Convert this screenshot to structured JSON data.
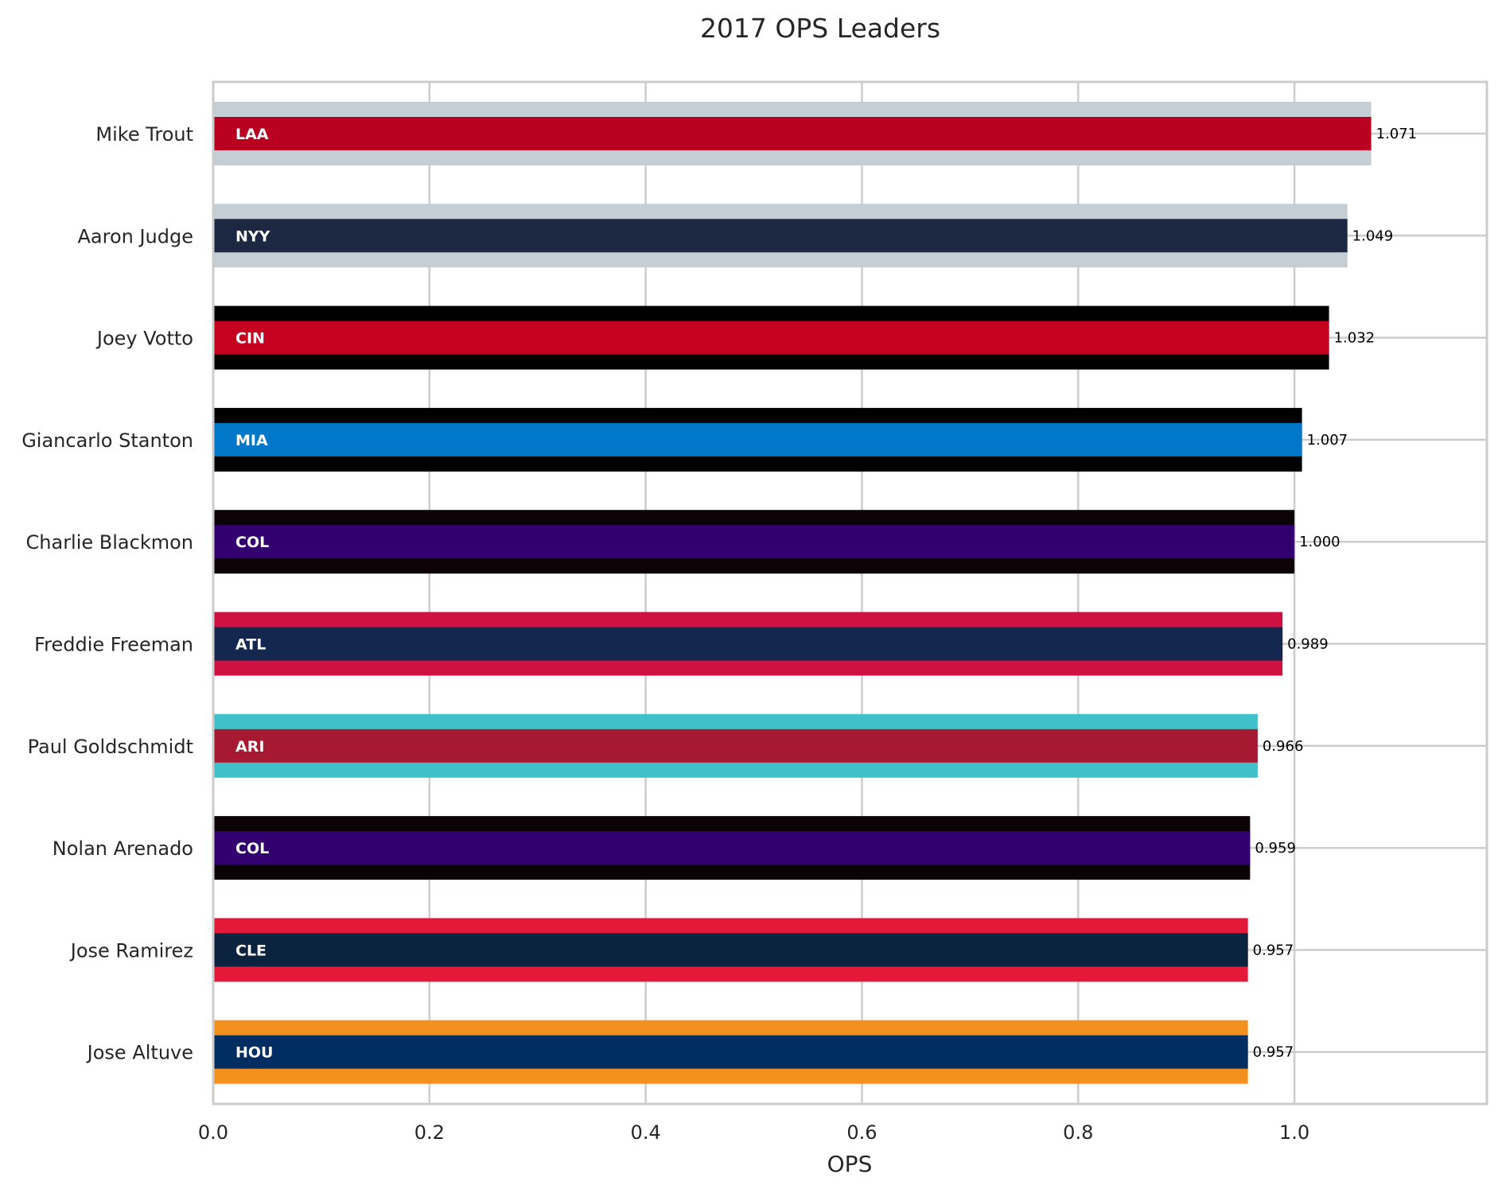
{
  "chart_data": {
    "type": "bar",
    "orientation": "horizontal",
    "title": "2017 OPS Leaders",
    "xlabel": "OPS",
    "ylabel": "",
    "xlim": [
      0,
      1.178
    ],
    "xticks": [
      "0.0",
      "0.2",
      "0.4",
      "0.6",
      "0.8",
      "1.0"
    ],
    "grid": true,
    "categories": [
      "Mike Trout",
      "Aaron Judge",
      "Joey Votto",
      "Giancarlo Stanton",
      "Charlie Blackmon",
      "Freddie Freeman",
      "Paul Goldschmidt",
      "Nolan Arenado",
      "Jose Ramirez",
      "Jose Altuve"
    ],
    "values": [
      1.071,
      1.049,
      1.032,
      1.007,
      1.0,
      0.989,
      0.966,
      0.959,
      0.957,
      0.957
    ],
    "value_labels": [
      "1.071",
      "1.049",
      "1.032",
      "1.007",
      "1.000",
      "0.989",
      "0.966",
      "0.959",
      "0.957",
      "0.957"
    ],
    "teams": [
      "LAA",
      "NYY",
      "CIN",
      "MIA",
      "COL",
      "ATL",
      "ARI",
      "COL",
      "CLE",
      "HOU"
    ],
    "primary_colors": [
      "#BA0021",
      "#1C2841",
      "#C6011F",
      "#0077C8",
      "#33006F",
      "#13274F",
      "#A71930",
      "#33006F",
      "#0C2340",
      "#002D62"
    ],
    "secondary_colors": [
      "#C4CED4",
      "#C4CED4",
      "#000000",
      "#000000",
      "#0C0306",
      "#CE1141",
      "#40C1C9",
      "#0C0306",
      "#E31937",
      "#F4911E"
    ]
  }
}
